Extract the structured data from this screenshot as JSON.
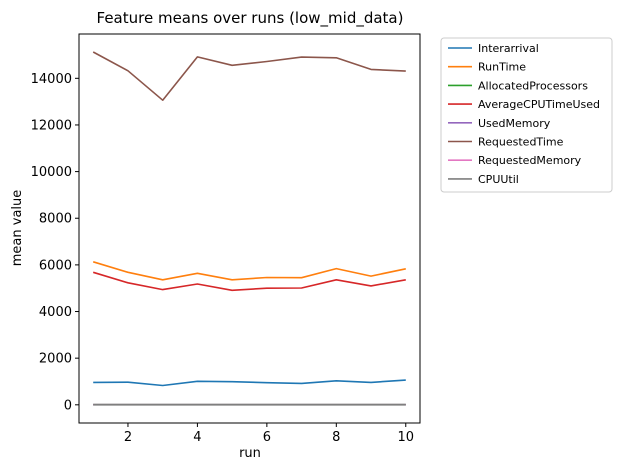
{
  "chart_data": {
    "type": "line",
    "title": "Feature means over runs (low_mid_data)",
    "xlabel": "run",
    "ylabel": "mean value",
    "xlim": [
      0.59,
      10.41
    ],
    "ylim": [
      -780,
      15900
    ],
    "x": [
      1,
      2,
      3,
      4,
      5,
      6,
      7,
      8,
      9,
      10
    ],
    "xticks": [
      2,
      4,
      6,
      8,
      10
    ],
    "yticks": [
      0,
      2000,
      4000,
      6000,
      8000,
      10000,
      12000,
      14000
    ],
    "legend_position": "outside-right",
    "grid": false,
    "series": [
      {
        "name": "Interarrival",
        "color": "#1f77b4",
        "values": [
          960,
          970,
          830,
          1010,
          990,
          950,
          920,
          1030,
          960,
          1060
        ]
      },
      {
        "name": "RunTime",
        "color": "#ff7f0e",
        "values": [
          6130,
          5680,
          5360,
          5640,
          5360,
          5460,
          5450,
          5840,
          5520,
          5830
        ]
      },
      {
        "name": "AllocatedProcessors",
        "color": "#2ca02c",
        "values": [
          12,
          12,
          11,
          12,
          12,
          11,
          12,
          12,
          12,
          12
        ]
      },
      {
        "name": "AverageCPUTimeUsed",
        "color": "#d62728",
        "values": [
          5680,
          5230,
          4940,
          5180,
          4910,
          5000,
          5010,
          5360,
          5100,
          5360
        ]
      },
      {
        "name": "UsedMemory",
        "color": "#9467bd",
        "values": [
          6,
          6,
          6,
          6,
          6,
          6,
          6,
          6,
          6,
          6
        ]
      },
      {
        "name": "RequestedTime",
        "color": "#8c564b",
        "values": [
          15130,
          14320,
          13060,
          14920,
          14560,
          14720,
          14910,
          14880,
          14380,
          14310
        ]
      },
      {
        "name": "RequestedMemory",
        "color": "#e377c2",
        "values": [
          4,
          4,
          4,
          4,
          4,
          4,
          4,
          4,
          4,
          4
        ]
      },
      {
        "name": "CPUUtil",
        "color": "#7f7f7f",
        "values": [
          1,
          1,
          1,
          1,
          1,
          1,
          1,
          1,
          1,
          1
        ]
      }
    ]
  }
}
